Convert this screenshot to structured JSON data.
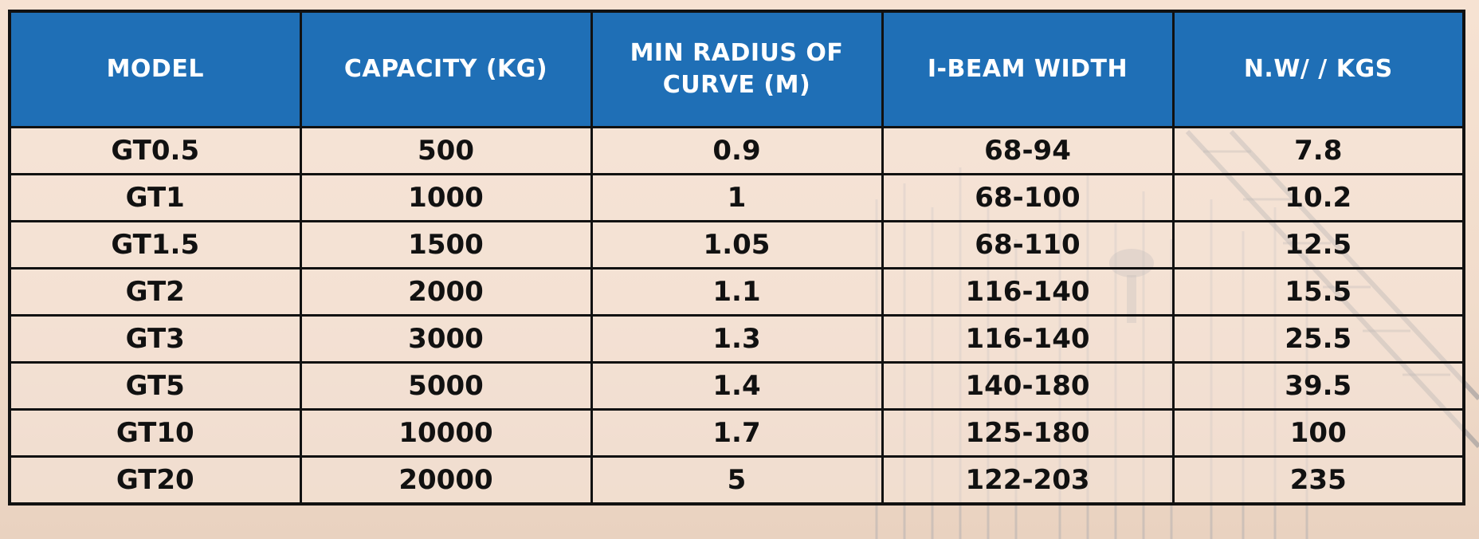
{
  "table": {
    "headers": [
      "MODEL",
      "CAPACITY (KG)",
      "MIN RADIUS OF CURVE (M)",
      "I-BEAM WIDTH",
      "N.W/ / KGS"
    ],
    "rows": [
      [
        "GT0.5",
        "500",
        "0.9",
        "68-94",
        "7.8"
      ],
      [
        "GT1",
        "1000",
        "1",
        "68-100",
        "10.2"
      ],
      [
        "GT1.5",
        "1500",
        "1.05",
        "68-110",
        "12.5"
      ],
      [
        "GT2",
        "2000",
        "1.1",
        "116-140",
        "15.5"
      ],
      [
        "GT3",
        "3000",
        "1.3",
        "116-140",
        "25.5"
      ],
      [
        "GT5",
        "5000",
        "1.4",
        "140-180",
        "39.5"
      ],
      [
        "GT10",
        "10000",
        "1.7",
        "125-180",
        "100"
      ],
      [
        "GT20",
        "20000",
        "5",
        "122-203",
        "235"
      ]
    ]
  },
  "colors": {
    "header_background": "#1f6fb6",
    "header_text": "#ffffff",
    "cell_text": "#111111",
    "border": "#111111",
    "page_background": "#f3dfcf"
  }
}
